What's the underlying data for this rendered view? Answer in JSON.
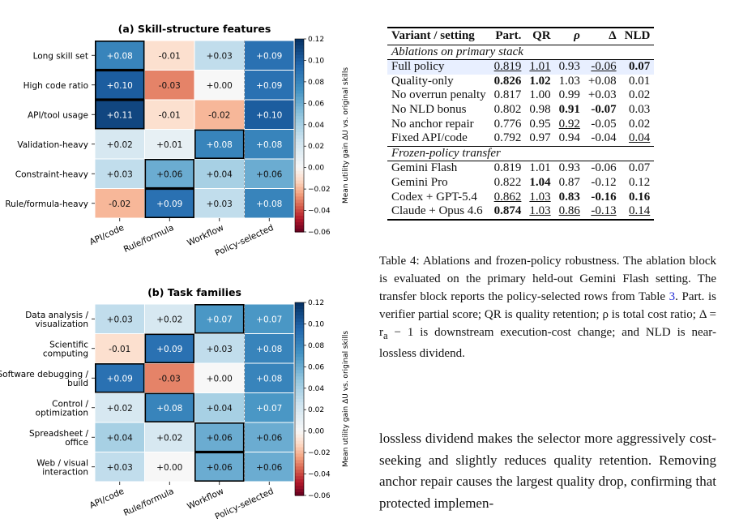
{
  "figure_a": {
    "title": "(a) Skill-structure features",
    "rows": [
      "Long skill set",
      "High code ratio",
      "API/tool usage",
      "Validation-heavy",
      "Constraint-heavy",
      "Rule/formula-heavy"
    ],
    "columns": [
      "API/code",
      "Rule/formula",
      "Workflow",
      "Policy-selected"
    ],
    "values": [
      [
        0.08,
        -0.01,
        0.03,
        0.09
      ],
      [
        0.1,
        -0.03,
        0.0,
        0.09
      ],
      [
        0.11,
        -0.01,
        -0.02,
        0.1
      ],
      [
        0.02,
        0.01,
        0.08,
        0.08
      ],
      [
        0.03,
        0.06,
        0.04,
        0.06
      ],
      [
        -0.02,
        0.09,
        0.03,
        0.08
      ]
    ],
    "labels": [
      [
        "+0.08",
        "-0.01",
        "+0.03",
        "+0.09"
      ],
      [
        "+0.10",
        "-0.03",
        "+0.00",
        "+0.09"
      ],
      [
        "+0.11",
        "-0.01",
        "-0.02",
        "+0.10"
      ],
      [
        "+0.02",
        "+0.01",
        "+0.08",
        "+0.08"
      ],
      [
        "+0.03",
        "+0.06",
        "+0.04",
        "+0.06"
      ],
      [
        "-0.02",
        "+0.09",
        "+0.03",
        "+0.08"
      ]
    ],
    "best_column": [
      0,
      0,
      0,
      2,
      1,
      1
    ]
  },
  "figure_b": {
    "title": "(b) Task families",
    "rows": [
      [
        "Data analysis /",
        "visualization"
      ],
      [
        "Scientific",
        "computing"
      ],
      [
        "Software debugging /",
        "build"
      ],
      [
        "Control /",
        "optimization"
      ],
      [
        "Spreadsheet /",
        "office"
      ],
      [
        "Web / visual",
        "interaction"
      ]
    ],
    "columns": [
      "API/code",
      "Rule/formula",
      "Workflow",
      "Policy-selected"
    ],
    "values": [
      [
        0.03,
        0.02,
        0.07,
        0.07
      ],
      [
        -0.01,
        0.09,
        0.03,
        0.08
      ],
      [
        0.09,
        -0.03,
        0.0,
        0.08
      ],
      [
        0.02,
        0.08,
        0.04,
        0.07
      ],
      [
        0.04,
        0.02,
        0.06,
        0.06
      ],
      [
        0.03,
        0.0,
        0.06,
        0.06
      ]
    ],
    "labels": [
      [
        "+0.03",
        "+0.02",
        "+0.07",
        "+0.07"
      ],
      [
        "-0.01",
        "+0.09",
        "+0.03",
        "+0.08"
      ],
      [
        "+0.09",
        "-0.03",
        "+0.00",
        "+0.08"
      ],
      [
        "+0.02",
        "+0.08",
        "+0.04",
        "+0.07"
      ],
      [
        "+0.04",
        "+0.02",
        "+0.06",
        "+0.06"
      ],
      [
        "+0.03",
        "+0.00",
        "+0.06",
        "+0.06"
      ]
    ],
    "best_column": [
      2,
      1,
      0,
      1,
      2,
      2
    ]
  },
  "chart_data": [
    {
      "type": "heatmap",
      "title": "(a) Skill-structure features",
      "x_categories": [
        "API/code",
        "Rule/formula",
        "Workflow",
        "Policy-selected"
      ],
      "y_categories": [
        "Long skill set",
        "High code ratio",
        "API/tool usage",
        "Validation-heavy",
        "Constraint-heavy",
        "Rule/formula-heavy"
      ],
      "values": [
        [
          0.08,
          -0.01,
          0.03,
          0.09
        ],
        [
          0.1,
          -0.03,
          0.0,
          0.09
        ],
        [
          0.11,
          -0.01,
          -0.02,
          0.1
        ],
        [
          0.02,
          0.01,
          0.08,
          0.08
        ],
        [
          0.03,
          0.06,
          0.04,
          0.06
        ],
        [
          -0.02,
          0.09,
          0.03,
          0.08
        ]
      ],
      "colorbar_label": "Mean utility gain ΔU vs. original skills",
      "colorbar_range": [
        -0.06,
        0.12
      ],
      "colorbar_ticks": [
        "0.12",
        "0.10",
        "0.08",
        "0.06",
        "0.04",
        "0.02",
        "0.00",
        "−0.02",
        "−0.04",
        "−0.06"
      ]
    },
    {
      "type": "heatmap",
      "title": "(b) Task families",
      "x_categories": [
        "API/code",
        "Rule/formula",
        "Workflow",
        "Policy-selected"
      ],
      "y_categories": [
        "Data analysis / visualization",
        "Scientific computing",
        "Software debugging / build",
        "Control / optimization",
        "Spreadsheet / office",
        "Web / visual interaction"
      ],
      "values": [
        [
          0.03,
          0.02,
          0.07,
          0.07
        ],
        [
          -0.01,
          0.09,
          0.03,
          0.08
        ],
        [
          0.09,
          -0.03,
          0.0,
          0.08
        ],
        [
          0.02,
          0.08,
          0.04,
          0.07
        ],
        [
          0.04,
          0.02,
          0.06,
          0.06
        ],
        [
          0.03,
          0.0,
          0.06,
          0.06
        ]
      ],
      "colorbar_label": "Mean utility gain ΔU vs. original skills",
      "colorbar_range": [
        -0.06,
        0.12
      ],
      "colorbar_ticks": [
        "0.12",
        "0.10",
        "0.08",
        "0.06",
        "0.04",
        "0.02",
        "0.00",
        "−0.02",
        "−0.04",
        "−0.06"
      ]
    },
    {
      "type": "table",
      "title": "Table 4",
      "columns": [
        "Variant / setting",
        "Part.",
        "QR",
        "ρ",
        "Δ",
        "NLD"
      ],
      "rows": [
        [
          "Full policy",
          "0.819",
          "1.01",
          "0.93",
          "-0.06",
          "0.07"
        ],
        [
          "Quality-only",
          "0.826",
          "1.02",
          "1.03",
          "+0.08",
          "0.01"
        ],
        [
          "No overrun penalty",
          "0.817",
          "1.00",
          "0.99",
          "+0.03",
          "0.02"
        ],
        [
          "No NLD bonus",
          "0.802",
          "0.98",
          "0.91",
          "-0.07",
          "0.03"
        ],
        [
          "No anchor repair",
          "0.776",
          "0.95",
          "0.92",
          "-0.05",
          "0.02"
        ],
        [
          "Fixed API/code",
          "0.792",
          "0.97",
          "0.94",
          "-0.04",
          "0.04"
        ],
        [
          "Gemini Flash",
          "0.819",
          "1.01",
          "0.93",
          "-0.06",
          "0.07"
        ],
        [
          "Gemini Pro",
          "0.822",
          "1.04",
          "0.87",
          "-0.12",
          "0.12"
        ],
        [
          "Codex + GPT-5.4",
          "0.862",
          "1.03",
          "0.83",
          "-0.16",
          "0.16"
        ],
        [
          "Claude + Opus 4.6",
          "0.874",
          "1.03",
          "0.86",
          "-0.13",
          "0.14"
        ]
      ]
    }
  ],
  "colorbar": {
    "label": "Mean utility gain ΔU vs. original skills",
    "ticks": [
      "0.12",
      "0.10",
      "0.08",
      "0.06",
      "0.04",
      "0.02",
      "0.00",
      "−0.02",
      "−0.04",
      "−0.06"
    ],
    "min": -0.06,
    "max": 0.12
  },
  "table": {
    "headers": [
      "Variant / setting",
      "Part.",
      "QR",
      "ρ",
      "Δ",
      "NLD"
    ],
    "section1": "Ablations on primary stack",
    "section2": "Frozen-policy transfer",
    "rows1": [
      [
        "Full policy",
        "0.819",
        "1.01",
        "0.93",
        "-0.06",
        "0.07"
      ],
      [
        "Quality-only",
        "0.826",
        "1.02",
        "1.03",
        "+0.08",
        "0.01"
      ],
      [
        "No overrun penalty",
        "0.817",
        "1.00",
        "0.99",
        "+0.03",
        "0.02"
      ],
      [
        "No NLD bonus",
        "0.802",
        "0.98",
        "0.91",
        "-0.07",
        "0.03"
      ],
      [
        "No anchor repair",
        "0.776",
        "0.95",
        "0.92",
        "-0.05",
        "0.02"
      ],
      [
        "Fixed API/code",
        "0.792",
        "0.97",
        "0.94",
        "-0.04",
        "0.04"
      ]
    ],
    "rows2": [
      [
        "Gemini Flash",
        "0.819",
        "1.01",
        "0.93",
        "-0.06",
        "0.07"
      ],
      [
        "Gemini Pro",
        "0.822",
        "1.04",
        "0.87",
        "-0.12",
        "0.12"
      ],
      [
        "Codex + GPT-5.4",
        "0.862",
        "1.03",
        "0.83",
        "-0.16",
        "0.16"
      ],
      [
        "Claude + Opus 4.6",
        "0.874",
        "1.03",
        "0.86",
        "-0.13",
        "0.14"
      ]
    ]
  },
  "caption": {
    "part1": "Table 4: Ablations and frozen-policy robustness. The ablation block is evaluated on the primary held-out Gemini Flash setting. The transfer block reports the policy-selected rows from Table ",
    "ref": "3",
    "part2": ". Part. is verifier partial score; QR is quality retention; ρ is total cost ratio; Δ = r",
    "sub": "a",
    "part3": " − 1 is downstream execution-cost change; and NLD is near-lossless dividend."
  },
  "body_text": "lossless dividend makes the selector more aggressively cost-seeking and slightly reduces quality retention. Removing anchor repair causes the largest quality drop, confirming that protected implemen-"
}
